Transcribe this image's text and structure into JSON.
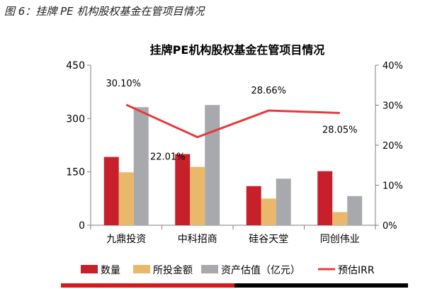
{
  "figure": {
    "caption_prefix": "图 6：",
    "caption_text": "挂牌 PE 机构股权基金在管项目情况"
  },
  "chart_data": {
    "type": "bar",
    "title": "挂牌PE机构股权基金在管项目情况",
    "categories": [
      "九鼎投资",
      "中科招商",
      "硅谷天堂",
      "同创伟业"
    ],
    "series": [
      {
        "name": "数量",
        "axis": "left",
        "color": "#c8202a",
        "values": [
          192,
          200,
          110,
          152
        ]
      },
      {
        "name": "所投金额",
        "axis": "left",
        "color": "#e9b86b",
        "values": [
          149,
          164,
          75,
          37
        ]
      },
      {
        "name": "资产估值（亿元）",
        "axis": "left",
        "color": "#a7a9ac",
        "values": [
          332,
          338,
          131,
          82
        ]
      },
      {
        "name": "预估IRR",
        "axis": "right",
        "type": "line",
        "color": "#e8383d",
        "values": [
          30.1,
          22.01,
          28.66,
          28.05
        ],
        "labels": [
          "30.10%",
          "22.01%",
          "28.66%",
          "28.05%"
        ]
      }
    ],
    "y_left": {
      "ylim": [
        0,
        450
      ],
      "ticks": [
        "0",
        "150",
        "300",
        "450"
      ],
      "tick_values": [
        0,
        150,
        300,
        450
      ]
    },
    "y_right": {
      "ylim": [
        0,
        40
      ],
      "ticks": [
        "0%",
        "10%",
        "20%",
        "30%",
        "40%"
      ],
      "tick_values": [
        0,
        10,
        20,
        30,
        40
      ]
    },
    "legend_position": "bottom",
    "grid": false
  }
}
